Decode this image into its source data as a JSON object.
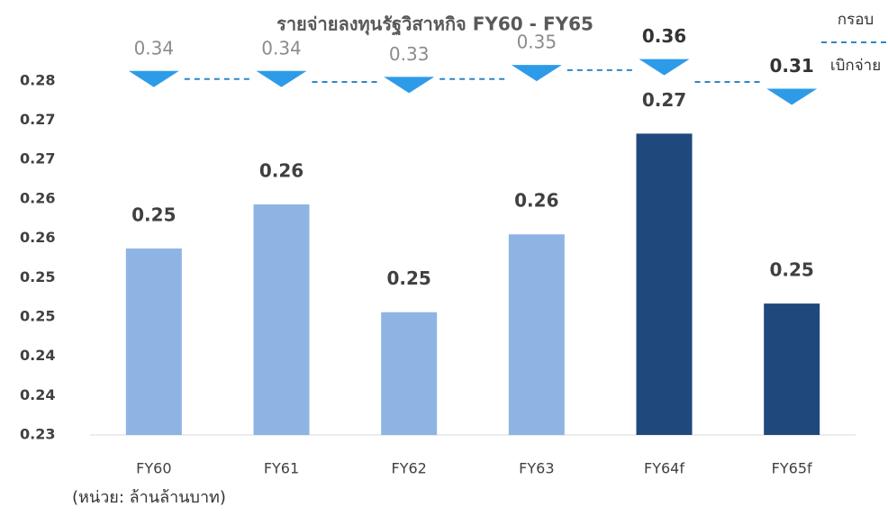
{
  "chart_data": {
    "type": "bar",
    "title": "รายจ่ายลงทุนรัฐวิสาหกิจ FY60 - FY65",
    "categories": [
      "FY60",
      "FY61",
      "FY62",
      "FY63",
      "FY64f",
      "FY65f"
    ],
    "values": [
      0.2537,
      0.2593,
      0.2456,
      0.2555,
      0.2683,
      0.2467
    ],
    "value_labels": [
      "0.25",
      "0.26",
      "0.25",
      "0.26",
      "0.27",
      "0.25"
    ],
    "colors": [
      "#8eb4e3",
      "#8eb4e3",
      "#8eb4e3",
      "#8eb4e3",
      "#1f497d",
      "#1f497d"
    ],
    "ylim": [
      0.23,
      0.2775
    ],
    "yticks": [
      {
        "value": 0.23,
        "label": "0.23"
      },
      {
        "value": 0.235,
        "label": "0.24"
      },
      {
        "value": 0.24,
        "label": "0.24"
      },
      {
        "value": 0.245,
        "label": "0.25"
      },
      {
        "value": 0.25,
        "label": "0.25"
      },
      {
        "value": 0.255,
        "label": "0.26"
      },
      {
        "value": 0.26,
        "label": "0.26"
      },
      {
        "value": 0.265,
        "label": "0.27"
      },
      {
        "value": 0.27,
        "label": "0.27"
      },
      {
        "value": 0.275,
        "label": "0.28"
      }
    ],
    "series": [
      {
        "name": "กรอบ",
        "color": "#2e9be8",
        "axis": "y2",
        "values": [
          0.34,
          0.34,
          0.33,
          0.35,
          0.36,
          0.31
        ]
      }
    ],
    "legend_line": {
      "name": "เบิกจ่าย",
      "color": "#2e86c8"
    },
    "y2lim": [
      -0.26,
      0.37
    ],
    "note": "(หน่วย: ล้านล้านบาท)"
  }
}
